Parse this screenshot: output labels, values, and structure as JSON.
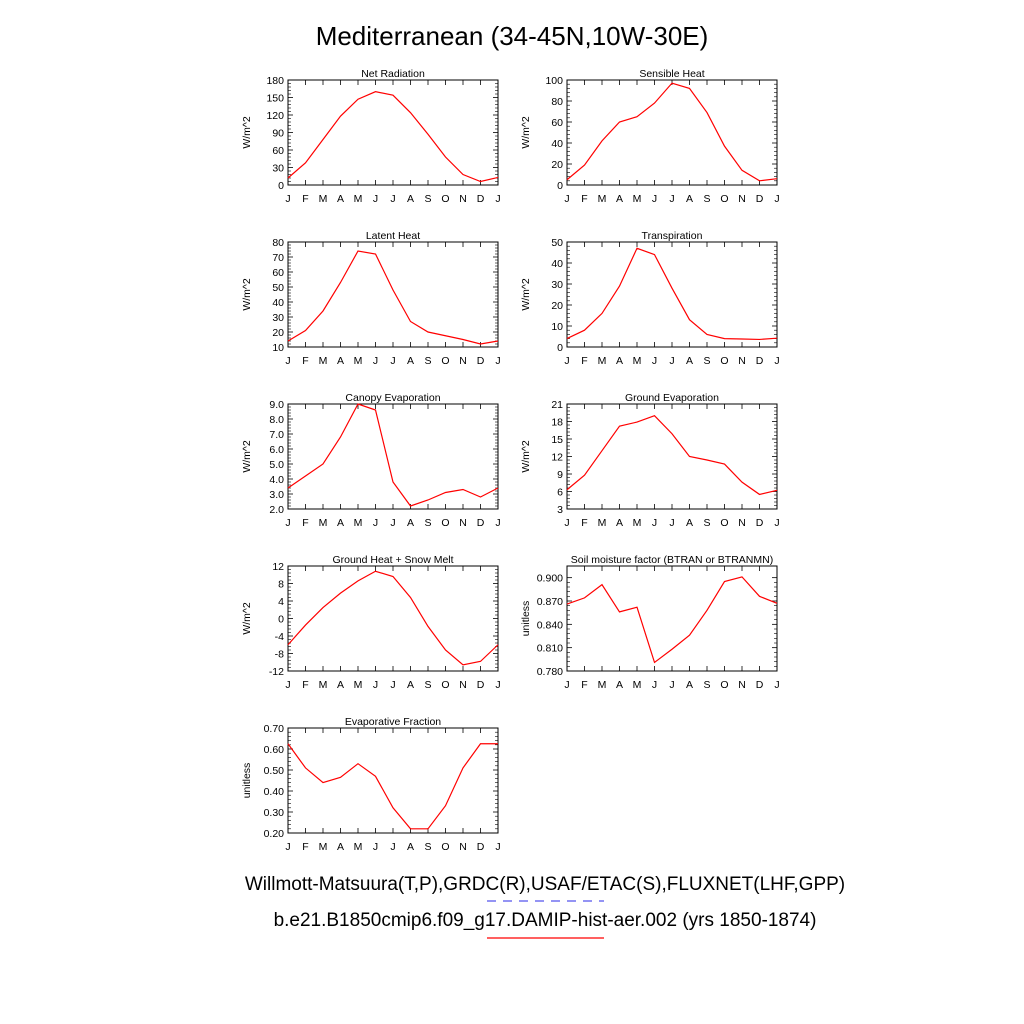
{
  "title": "Mediterranean (34-45N,10W-30E)",
  "legend": {
    "line1": "Willmott-Matsuura(T,P),GRDC(R),USAF/ETAC(S),FLUXNET(LHF,GPP)",
    "line1_style": "dashed",
    "line1_color": "#5555ee",
    "line2": "b.e21.B1850cmip6.f09_g17.DAMIP-hist-aer.002 (yrs 1850-1874)",
    "line2_style": "solid",
    "line2_color": "#ff0000"
  },
  "chart_data": [
    {
      "type": "line",
      "title": "Net Radiation",
      "ylabel": "W/m^2",
      "categories": [
        "J",
        "F",
        "M",
        "A",
        "M",
        "J",
        "J",
        "A",
        "S",
        "O",
        "N",
        "D",
        "J"
      ],
      "ylim": [
        0,
        180
      ],
      "yticks": [
        "0",
        "30",
        "60",
        "90",
        "120",
        "150",
        "180"
      ],
      "series": [
        {
          "color": "#ff0000",
          "values": [
            12,
            38,
            78,
            118,
            147,
            160,
            154,
            124,
            87,
            48,
            18,
            6,
            13
          ]
        }
      ]
    },
    {
      "type": "line",
      "title": "Sensible Heat",
      "ylabel": "W/m^2",
      "categories": [
        "J",
        "F",
        "M",
        "A",
        "M",
        "J",
        "J",
        "A",
        "S",
        "O",
        "N",
        "D",
        "J"
      ],
      "ylim": [
        0,
        100
      ],
      "yticks": [
        "0",
        "20",
        "40",
        "60",
        "80",
        "100"
      ],
      "series": [
        {
          "color": "#ff0000",
          "values": [
            5,
            19,
            42,
            60,
            65,
            78,
            97,
            92,
            69,
            37,
            14,
            4,
            6
          ]
        }
      ]
    },
    {
      "type": "line",
      "title": "Latent Heat",
      "ylabel": "W/m^2",
      "categories": [
        "J",
        "F",
        "M",
        "A",
        "M",
        "J",
        "J",
        "A",
        "S",
        "O",
        "N",
        "D",
        "J"
      ],
      "ylim": [
        10,
        80
      ],
      "yticks": [
        "10",
        "20",
        "30",
        "40",
        "50",
        "60",
        "70",
        "80"
      ],
      "series": [
        {
          "color": "#ff0000",
          "values": [
            14,
            21,
            34,
            53,
            74,
            72,
            48,
            27,
            20,
            17.5,
            15,
            12,
            14
          ]
        }
      ]
    },
    {
      "type": "line",
      "title": "Transpiration",
      "ylabel": "W/m^2",
      "categories": [
        "J",
        "F",
        "M",
        "A",
        "M",
        "J",
        "J",
        "A",
        "S",
        "O",
        "N",
        "D",
        "J"
      ],
      "ylim": [
        0,
        50
      ],
      "yticks": [
        "0",
        "10",
        "20",
        "30",
        "40",
        "50"
      ],
      "series": [
        {
          "color": "#ff0000",
          "values": [
            4,
            8,
            16,
            29,
            47,
            44,
            28,
            13,
            6,
            4,
            3.8,
            3.6,
            4.2
          ]
        }
      ]
    },
    {
      "type": "line",
      "title": "Canopy Evaporation",
      "ylabel": "W/m^2",
      "categories": [
        "J",
        "F",
        "M",
        "A",
        "M",
        "J",
        "J",
        "A",
        "S",
        "O",
        "N",
        "D",
        "J"
      ],
      "ylim": [
        2,
        9
      ],
      "yticks": [
        "2.0",
        "3.0",
        "4.0",
        "5.0",
        "6.0",
        "7.0",
        "8.0",
        "9.0"
      ],
      "series": [
        {
          "color": "#ff0000",
          "values": [
            3.4,
            4.2,
            5.0,
            6.8,
            9.0,
            8.6,
            3.8,
            2.2,
            2.6,
            3.1,
            3.3,
            2.8,
            3.4
          ]
        }
      ]
    },
    {
      "type": "line",
      "title": "Ground Evaporation",
      "ylabel": "W/m^2",
      "categories": [
        "J",
        "F",
        "M",
        "A",
        "M",
        "J",
        "J",
        "A",
        "S",
        "O",
        "N",
        "D",
        "J"
      ],
      "ylim": [
        3,
        21
      ],
      "yticks": [
        "3",
        "6",
        "9",
        "12",
        "15",
        "18",
        "21"
      ],
      "series": [
        {
          "color": "#ff0000",
          "values": [
            6.3,
            8.8,
            13,
            17.2,
            17.9,
            19,
            15.9,
            12,
            11.4,
            10.7,
            7.6,
            5.5,
            6.2
          ]
        }
      ]
    },
    {
      "type": "line",
      "title": "Ground Heat + Snow Melt",
      "ylabel": "W/m^2",
      "categories": [
        "J",
        "F",
        "M",
        "A",
        "M",
        "J",
        "J",
        "A",
        "S",
        "O",
        "N",
        "D",
        "J"
      ],
      "ylim": [
        -12,
        12
      ],
      "yticks": [
        "-12",
        "-8",
        "-4",
        "0",
        "4",
        "8",
        "12"
      ],
      "series": [
        {
          "color": "#ff0000",
          "values": [
            -6,
            -1.5,
            2.5,
            5.8,
            8.6,
            10.8,
            9.6,
            4.8,
            -1.8,
            -7.2,
            -10.6,
            -9.8,
            -6
          ]
        }
      ]
    },
    {
      "type": "line",
      "title": "Soil moisture factor (BTRAN or BTRANMN)",
      "ylabel": "unitless",
      "categories": [
        "J",
        "F",
        "M",
        "A",
        "M",
        "J",
        "J",
        "A",
        "S",
        "O",
        "N",
        "D",
        "J"
      ],
      "ylim": [
        0.78,
        0.915
      ],
      "yticks": [
        "0.780",
        "0.810",
        "0.840",
        "0.870",
        "0.900"
      ],
      "ytick_values": [
        0.78,
        0.81,
        0.84,
        0.87,
        0.9
      ],
      "series": [
        {
          "color": "#ff0000",
          "values": [
            0.866,
            0.874,
            0.891,
            0.856,
            0.862,
            0.791,
            0.808,
            0.826,
            0.858,
            0.895,
            0.901,
            0.876,
            0.867
          ]
        }
      ]
    },
    {
      "type": "line",
      "title": "Evaporative Fraction",
      "ylabel": "unitless",
      "categories": [
        "J",
        "F",
        "M",
        "A",
        "M",
        "J",
        "J",
        "A",
        "S",
        "O",
        "N",
        "D",
        "J"
      ],
      "ylim": [
        0.2,
        0.7
      ],
      "yticks": [
        "0.20",
        "0.30",
        "0.40",
        "0.50",
        "0.60",
        "0.70"
      ],
      "series": [
        {
          "color": "#ff0000",
          "values": [
            0.625,
            0.51,
            0.44,
            0.465,
            0.53,
            0.47,
            0.32,
            0.22,
            0.22,
            0.33,
            0.51,
            0.625,
            0.625
          ]
        }
      ]
    }
  ]
}
